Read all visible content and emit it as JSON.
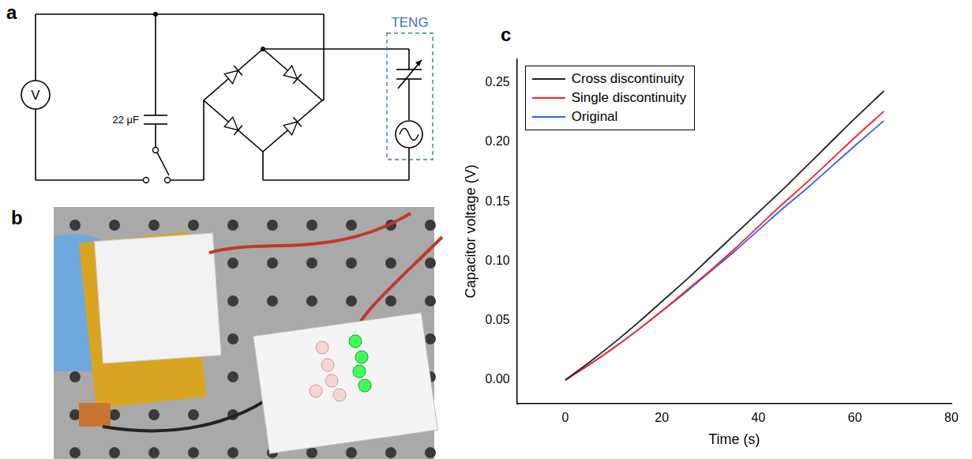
{
  "panels": {
    "a": {
      "letter": "a",
      "meter": "V",
      "capacitor": "22 μF",
      "source_label": "TENG"
    },
    "b": {
      "letter": "b"
    },
    "c": {
      "letter": "c"
    }
  },
  "chart_data": {
    "type": "line",
    "x_label": "Time (s)",
    "y_label": "Capacitor voltage (V)",
    "x": [
      0,
      5,
      10,
      15,
      20,
      25,
      30,
      35,
      40,
      45,
      50,
      55,
      60,
      66
    ],
    "series": [
      {
        "name": "Cross discontinuity",
        "color": "#222222",
        "values": [
          0,
          0.015,
          0.031,
          0.048,
          0.066,
          0.084,
          0.103,
          0.122,
          0.141,
          0.16,
          0.18,
          0.2,
          0.22,
          0.243
        ]
      },
      {
        "name": "Single discontinuity",
        "color": "#ff2020",
        "values": [
          0,
          0.013,
          0.027,
          0.042,
          0.058,
          0.075,
          0.092,
          0.11,
          0.129,
          0.148,
          0.166,
          0.185,
          0.204,
          0.226
        ]
      },
      {
        "name": "Original",
        "color": "#3060ff",
        "values": [
          0,
          0.013,
          0.027,
          0.042,
          0.058,
          0.074,
          0.091,
          0.108,
          0.126,
          0.144,
          0.161,
          0.179,
          0.197,
          0.218
        ]
      }
    ],
    "xlim": [
      -10,
      80
    ],
    "xticks": [
      0,
      20,
      40,
      60,
      80
    ],
    "ylim": [
      -0.02,
      0.27
    ],
    "yticks": [
      {
        "value": 0,
        "label": "0.00"
      },
      {
        "value": 0.05,
        "label": "0.05"
      },
      {
        "value": 0.1,
        "label": "0.10"
      },
      {
        "value": 0.15,
        "label": "0.15"
      },
      {
        "value": 0.2,
        "label": "0.20"
      },
      {
        "value": 0.25,
        "label": "0.25"
      }
    ],
    "grid": false,
    "legend": "upper left"
  }
}
